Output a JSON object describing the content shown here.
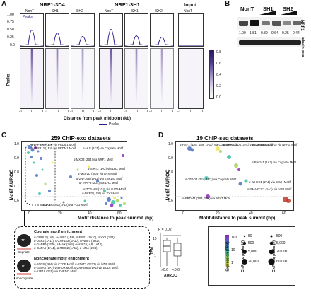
{
  "panelA": {
    "letter": "A",
    "group1": "NRF1-3D4",
    "group2": "NRF1-3H1",
    "group3": "Input",
    "samples": [
      "NonT",
      "SH1",
      "SH2",
      "NonT",
      "SH1",
      "SH2",
      "NonT"
    ],
    "profile_ticks": [
      "1.00",
      "0.75",
      "0.50",
      "0.25",
      "0.0"
    ],
    "heat_ticks": [
      "-1",
      "0",
      "1"
    ],
    "legend_peaks": "Peaks",
    "ylabel": "Peaks",
    "xlabel": "Distance from peak midpoint (kb)",
    "bottom_legend": "Peaks",
    "colorbar_ticks": [
      "0.8",
      "0.6",
      "0.4",
      "0.2",
      "0.0"
    ]
  },
  "panelB": {
    "letter": "B",
    "lanes": [
      "NonT",
      "SH1",
      "SH2"
    ],
    "values": [
      "1.00",
      "1.81",
      "0.39",
      "0.64",
      "0.25",
      "0.44"
    ],
    "row1": "NRF1",
    "row2": "tubulin beta"
  },
  "panelC": {
    "letter": "C",
    "title": "259 ChIP-exo datasets",
    "ylabel": "Motif AUROC",
    "xlabel": "Motif distance to peak summit (bp)",
    "yticks": [
      "1.0",
      "0.9",
      "0.8",
      "0.7",
      "0.6"
    ],
    "xticks": [
      "0",
      "20",
      "40",
      "60"
    ],
    "annotations": [
      "α-ZNF550 (1B4) via PRDM1 Motif",
      "α-ZNF212 (1E4) via PRDM1 Motif",
      "α-HLF (1C5) via Cognate Motif",
      "α-MXD3 (2B4) via NRF1 Motif",
      "α-SIRT2 (1A2) via LHX Motif",
      "α-MEF2D (3A4) via LHX Motif",
      "α-ZNF398 (1A11) via ZNF143 Motif",
      "α-THAP5 (2D4) via LHX Motif",
      "α-TCEAL8 (1C4) via GATA Motif",
      "α-DCP2 (1G6) via YY1 Motif",
      "α-ZKSCAN1 (1F10) via POU Motif"
    ],
    "cognate_title": "Cognate motif enrichment",
    "cognate_lines": [
      "α-GRHL2 (1A6), α-USF1 (1B8), α-ESR1 (1A10), α-YY1 (1B2),",
      "α-USF2 (1A11), α-ZNF143 (1A10), α-NRF1 (3H1),",
      "α-GABPA (2G5), α-MAX (3A4), α-HSF1 (1A8, 1A10),",
      "α-GATA4 (1A11), α-MEIS2 (1A11), α-NFIA (2C8)"
    ],
    "noncognate_title": "Noncognate motif enrichment",
    "noncognate_lines": [
      "α-SOX6 (2H4) via CTCF Motif, α-STAT3 (2F12) via bZIP Motif,",
      "α-GATA4 (1A7) via FOX Motif, α-ZNF385B (1A1) via BCL6 Motif,",
      "α-KLF16 (2E5) via ZNF143 Motif"
    ],
    "cognate_label": "Cognate",
    "noncognate_label": "Noncognate",
    "tf_label": "TF",
    "boxplot_p": "P = 0.02",
    "boxplot_ylabel": "TPM",
    "boxplot_xlabels": [
      ">0.6",
      "<0.6"
    ],
    "boxplot_xlabel": "AUROC",
    "boxplot_yticks": [
      "10",
      "1"
    ]
  },
  "panelD": {
    "letter": "D",
    "title": "19 ChIP-seq datasets",
    "ylabel": "Motif AUROC",
    "xlabel": "Motif distance to peak summit (bp)",
    "yticks": [
      "1.0",
      "0.9",
      "0.8",
      "0.7",
      "0.6"
    ],
    "xticks": [
      "0",
      "20",
      "40",
      "60"
    ],
    "annotations": [
      "α-HSF1 (1A8, 1A9, 1A10) via Cognate Motif",
      "α-NRF1 (3D4, 3H1) via Cognate Motif",
      "α-SMARCC1 (1F1) via NRF1 Motif",
      "α-BACH1 (1A2) via Cognate Motif",
      "α-TEAD4 (2F4, 1G7) via Cognate Motif",
      "α-WHSC1 (2A1) via bHLH Motif",
      "α-SMARCC2 (1A3) via bZIP Motif",
      "α-PRDM4 (2B3, 2B4) via NFAT Motif"
    ],
    "legend_color_title": "Expression (TPM)",
    "legend_color_ticks": [
      "100",
      "10",
      "1"
    ],
    "legend_size_title": "ChIP-exo peaks (#)",
    "legend_size_ticks": [
      "50",
      "500",
      "5,000",
      "20,000"
    ],
    "legend_size2_title": "ChIP-seq peaks (#)",
    "legend_size2_ticks": [
      "500",
      "5,000",
      "20,000",
      "60,000"
    ]
  },
  "colors": {
    "profile": "#2b1a8c",
    "highlight": "#2a2060"
  }
}
